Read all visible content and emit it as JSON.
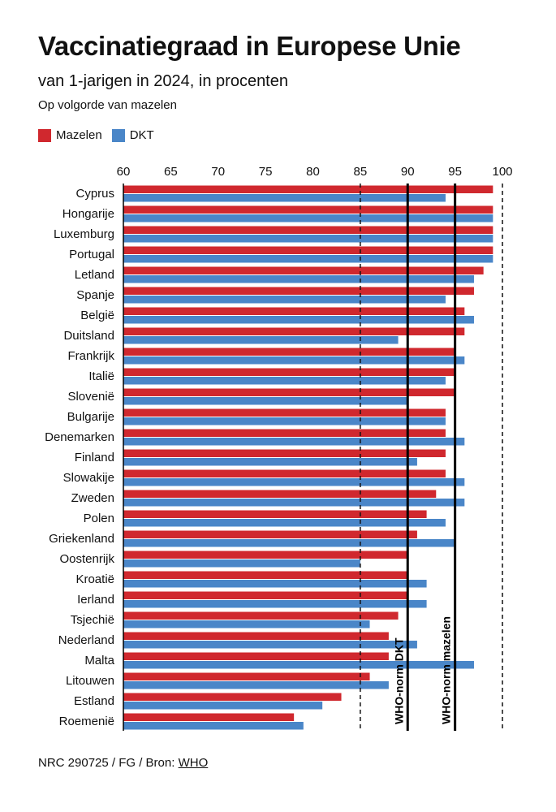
{
  "header": {
    "title": "Vaccinatiegraad in Europese Unie",
    "subtitle": "van 1-jarigen in 2024, in procenten",
    "note": "Op volgorde van mazelen"
  },
  "legend": {
    "measles_label": "Mazelen",
    "dkt_label": "DKT"
  },
  "colors": {
    "measles": "#d0282e",
    "dkt": "#4a86c8",
    "axis": "#000000"
  },
  "footer": {
    "prefix": "NRC 290725 / FG / Bron: ",
    "source_link": "WHO"
  },
  "chart_data": {
    "type": "bar",
    "orientation": "horizontal",
    "title": "Vaccinatiegraad in Europese Unie",
    "categories": [
      "Cyprus",
      "Hongarije",
      "Luxemburg",
      "Portugal",
      "Letland",
      "Spanje",
      "België",
      "Duitsland",
      "Frankrijk",
      "Italië",
      "Slovenië",
      "Bulgarije",
      "Denemarken",
      "Finland",
      "Slowakije",
      "Zweden",
      "Polen",
      "Griekenland",
      "Oostenrijk",
      "Kroatië",
      "Ierland",
      "Tsjechië",
      "Nederland",
      "Malta",
      "Litouwen",
      "Estland",
      "Roemenië"
    ],
    "series": [
      {
        "name": "Mazelen",
        "values": [
          99,
          99,
          99,
          99,
          98,
          97,
          96,
          96,
          95,
          95,
          95,
          94,
          94,
          94,
          94,
          93,
          92,
          91,
          90,
          90,
          90,
          89,
          88,
          88,
          86,
          83,
          78
        ]
      },
      {
        "name": "DKT",
        "values": [
          94,
          99,
          99,
          99,
          97,
          94,
          97,
          89,
          96,
          94,
          90,
          94,
          96,
          91,
          96,
          96,
          94,
          95,
          85,
          92,
          92,
          86,
          91,
          97,
          88,
          81,
          79
        ]
      }
    ],
    "xlim": [
      60,
      100
    ],
    "xticks": [
      60,
      65,
      70,
      75,
      80,
      85,
      90,
      95,
      100
    ],
    "reference_lines": [
      {
        "value": 90,
        "label": "WHO-norm DKT"
      },
      {
        "value": 95,
        "label": "WHO-norm mazelen"
      }
    ],
    "dashed_gridlines": [
      85,
      100
    ]
  }
}
